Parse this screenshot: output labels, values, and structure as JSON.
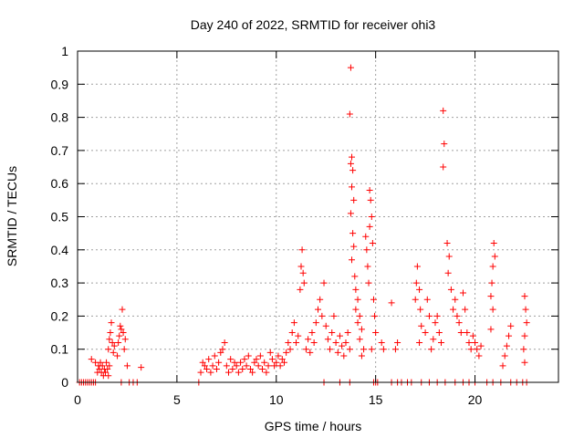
{
  "chart_data": {
    "type": "scatter",
    "title": "Day 240 of 2022, SRMTID for receiver ohi3",
    "xlabel": "GPS time / hours",
    "ylabel": "SRMTID / TECUs",
    "xlim": [
      0,
      24.2
    ],
    "ylim": [
      0,
      1
    ],
    "x_ticks": [
      0,
      5,
      10,
      15,
      20
    ],
    "x_tick_labels": [
      "0",
      "5",
      "10",
      "15",
      "20"
    ],
    "y_ticks": [
      0,
      0.1,
      0.2,
      0.3,
      0.4,
      0.5,
      0.6,
      0.7,
      0.8,
      0.9,
      1
    ],
    "y_tick_labels": [
      "0",
      "0.1",
      "0.2",
      "0.3",
      "0.4",
      "0.5",
      "0.6",
      "0.7",
      "0.8",
      "0.9",
      "1"
    ],
    "grid": true,
    "marker": "+",
    "color": "#ff0000",
    "series": [
      {
        "name": "SRMTID",
        "points": [
          [
            0.1,
            0
          ],
          [
            0.2,
            0
          ],
          [
            0.3,
            0
          ],
          [
            0.4,
            0
          ],
          [
            0.5,
            0
          ],
          [
            0.6,
            0
          ],
          [
            0.7,
            0
          ],
          [
            0.8,
            0
          ],
          [
            0.9,
            0
          ],
          [
            0.7,
            0.07
          ],
          [
            0.9,
            0.06
          ],
          [
            1.0,
            0.03
          ],
          [
            1.05,
            0.05
          ],
          [
            1.1,
            0.04
          ],
          [
            1.15,
            0.06
          ],
          [
            1.2,
            0.03
          ],
          [
            1.25,
            0.05
          ],
          [
            1.3,
            0.02
          ],
          [
            1.35,
            0.04
          ],
          [
            1.4,
            0.03
          ],
          [
            1.45,
            0.06
          ],
          [
            1.5,
            0.04
          ],
          [
            1.55,
            0.02
          ],
          [
            1.6,
            0.05
          ],
          [
            1.55,
            0.1
          ],
          [
            1.6,
            0.13
          ],
          [
            1.65,
            0.15
          ],
          [
            1.7,
            0.18
          ],
          [
            1.75,
            0.12
          ],
          [
            1.8,
            0.09
          ],
          [
            1.85,
            0.11
          ],
          [
            2.0,
            0.08
          ],
          [
            2.05,
            0.12
          ],
          [
            2.1,
            0.14
          ],
          [
            2.15,
            0.17
          ],
          [
            2.2,
            0.16
          ],
          [
            2.25,
            0.22
          ],
          [
            2.3,
            0.15
          ],
          [
            2.35,
            0.1
          ],
          [
            2.4,
            0.13
          ],
          [
            2.2,
            0
          ],
          [
            2.5,
            0.05
          ],
          [
            2.6,
            0
          ],
          [
            2.8,
            0
          ],
          [
            3.0,
            0
          ],
          [
            3.2,
            0.045
          ],
          [
            6.1,
            0
          ],
          [
            6.2,
            0.03
          ],
          [
            6.3,
            0.06
          ],
          [
            6.4,
            0.05
          ],
          [
            6.5,
            0.04
          ],
          [
            6.6,
            0.07
          ],
          [
            6.7,
            0.03
          ],
          [
            6.8,
            0.05
          ],
          [
            6.9,
            0.08
          ],
          [
            7.0,
            0.04
          ],
          [
            7.1,
            0.06
          ],
          [
            7.2,
            0.09
          ],
          [
            7.3,
            0.1
          ],
          [
            7.4,
            0.12
          ],
          [
            7.5,
            0.05
          ],
          [
            7.6,
            0.03
          ],
          [
            7.7,
            0.07
          ],
          [
            7.8,
            0.04
          ],
          [
            7.9,
            0.06
          ],
          [
            8.0,
            0.05
          ],
          [
            8.1,
            0.03
          ],
          [
            8.2,
            0.06
          ],
          [
            8.3,
            0.04
          ],
          [
            8.4,
            0.07
          ],
          [
            8.5,
            0.05
          ],
          [
            8.6,
            0.08
          ],
          [
            8.7,
            0.04
          ],
          [
            8.8,
            0.03
          ],
          [
            8.9,
            0.06
          ],
          [
            9.0,
            0.07
          ],
          [
            9.1,
            0.05
          ],
          [
            9.2,
            0.08
          ],
          [
            9.3,
            0.04
          ],
          [
            9.4,
            0.06
          ],
          [
            9.5,
            0.03
          ],
          [
            9.6,
            0.05
          ],
          [
            9.7,
            0.09
          ],
          [
            9.8,
            0.07
          ],
          [
            9.9,
            0.05
          ],
          [
            10.0,
            0.06
          ],
          [
            10.1,
            0.08
          ],
          [
            10.2,
            0.05
          ],
          [
            10.3,
            0.07
          ],
          [
            10.4,
            0.06
          ],
          [
            10.5,
            0.09
          ],
          [
            10.6,
            0.12
          ],
          [
            10.7,
            0.1
          ],
          [
            10.8,
            0.15
          ],
          [
            10.9,
            0.18
          ],
          [
            11.0,
            0.12
          ],
          [
            11.1,
            0.14
          ],
          [
            11.2,
            0.28
          ],
          [
            11.25,
            0.35
          ],
          [
            11.3,
            0.4
          ],
          [
            11.35,
            0.33
          ],
          [
            11.4,
            0.3
          ],
          [
            11.5,
            0.1
          ],
          [
            11.6,
            0.13
          ],
          [
            11.7,
            0.09
          ],
          [
            11.8,
            0.15
          ],
          [
            11.9,
            0.12
          ],
          [
            12.0,
            0.18
          ],
          [
            12.1,
            0.22
          ],
          [
            12.2,
            0.25
          ],
          [
            12.3,
            0.2
          ],
          [
            12.4,
            0.3
          ],
          [
            12.5,
            0.17
          ],
          [
            12.6,
            0.13
          ],
          [
            12.7,
            0.1
          ],
          [
            12.8,
            0.15
          ],
          [
            12.9,
            0.2
          ],
          [
            13.0,
            0.12
          ],
          [
            13.1,
            0.09
          ],
          [
            13.2,
            0.14
          ],
          [
            13.3,
            0.11
          ],
          [
            13.4,
            0.08
          ],
          [
            13.5,
            0.12
          ],
          [
            13.6,
            0.15
          ],
          [
            13.7,
            0.1
          ],
          [
            12.4,
            0
          ],
          [
            13.2,
            0
          ],
          [
            13.7,
            0
          ],
          [
            13.75,
            0.95
          ],
          [
            13.7,
            0.81
          ],
          [
            13.8,
            0.68
          ],
          [
            13.75,
            0.66
          ],
          [
            13.85,
            0.64
          ],
          [
            13.8,
            0.59
          ],
          [
            13.9,
            0.55
          ],
          [
            13.75,
            0.51
          ],
          [
            13.85,
            0.45
          ],
          [
            13.9,
            0.41
          ],
          [
            13.8,
            0.37
          ],
          [
            13.95,
            0.32
          ],
          [
            14.0,
            0.28
          ],
          [
            14.1,
            0.25
          ],
          [
            14.0,
            0.22
          ],
          [
            14.2,
            0.2
          ],
          [
            14.1,
            0.18
          ],
          [
            14.3,
            0.16
          ],
          [
            14.2,
            0.13
          ],
          [
            14.4,
            0.1
          ],
          [
            14.3,
            0.08
          ],
          [
            14.5,
            0.44
          ],
          [
            14.55,
            0.4
          ],
          [
            14.6,
            0.35
          ],
          [
            14.65,
            0.3
          ],
          [
            14.7,
            0.58
          ],
          [
            14.75,
            0.55
          ],
          [
            14.8,
            0.5
          ],
          [
            14.7,
            0.47
          ],
          [
            14.85,
            0.42
          ],
          [
            14.9,
            0.25
          ],
          [
            14.95,
            0.2
          ],
          [
            15.0,
            0.15
          ],
          [
            14.8,
            0.1
          ],
          [
            14.9,
            0
          ],
          [
            15.0,
            0
          ],
          [
            15.1,
            0
          ],
          [
            15.3,
            0.12
          ],
          [
            15.4,
            0.1
          ],
          [
            15.8,
            0.24
          ],
          [
            16.0,
            0.1
          ],
          [
            16.1,
            0.12
          ],
          [
            15.8,
            0
          ],
          [
            16.1,
            0
          ],
          [
            16.3,
            0
          ],
          [
            16.6,
            0
          ],
          [
            16.8,
            0
          ],
          [
            17.0,
            0.25
          ],
          [
            17.05,
            0.3
          ],
          [
            17.1,
            0.35
          ],
          [
            17.2,
            0.28
          ],
          [
            17.25,
            0.22
          ],
          [
            17.3,
            0.17
          ],
          [
            17.2,
            0.12
          ],
          [
            17.5,
            0.15
          ],
          [
            17.6,
            0.25
          ],
          [
            17.7,
            0.2
          ],
          [
            17.8,
            0.1
          ],
          [
            17.9,
            0.13
          ],
          [
            18.0,
            0.18
          ],
          [
            18.1,
            0.2
          ],
          [
            18.2,
            0.15
          ],
          [
            18.3,
            0.12
          ],
          [
            18.4,
            0.82
          ],
          [
            18.45,
            0.72
          ],
          [
            18.4,
            0.65
          ],
          [
            18.6,
            0.42
          ],
          [
            18.7,
            0.38
          ],
          [
            18.65,
            0.33
          ],
          [
            18.8,
            0.28
          ],
          [
            18.9,
            0.22
          ],
          [
            19.0,
            0.25
          ],
          [
            19.1,
            0.2
          ],
          [
            19.2,
            0.18
          ],
          [
            19.3,
            0.15
          ],
          [
            19.4,
            0.27
          ],
          [
            19.5,
            0.22
          ],
          [
            19.6,
            0.15
          ],
          [
            19.7,
            0.12
          ],
          [
            19.8,
            0.1
          ],
          [
            19.9,
            0.14
          ],
          [
            20.0,
            0.12
          ],
          [
            20.1,
            0.1
          ],
          [
            20.2,
            0.08
          ],
          [
            20.3,
            0.11
          ],
          [
            17.3,
            0
          ],
          [
            17.7,
            0
          ],
          [
            18.1,
            0
          ],
          [
            18.5,
            0
          ],
          [
            19.0,
            0
          ],
          [
            19.4,
            0
          ],
          [
            19.7,
            0
          ],
          [
            20.0,
            0
          ],
          [
            20.8,
            0.26
          ],
          [
            20.85,
            0.3
          ],
          [
            20.9,
            0.35
          ],
          [
            20.95,
            0.42
          ],
          [
            21.0,
            0.38
          ],
          [
            20.9,
            0.22
          ],
          [
            20.8,
            0.16
          ],
          [
            20.6,
            0
          ],
          [
            20.9,
            0
          ],
          [
            21.3,
            0
          ],
          [
            21.4,
            0.05
          ],
          [
            21.5,
            0.08
          ],
          [
            21.6,
            0.11
          ],
          [
            21.7,
            0.14
          ],
          [
            21.8,
            0.17
          ],
          [
            21.8,
            0
          ],
          [
            22.1,
            0
          ],
          [
            22.4,
            0
          ],
          [
            22.6,
            0
          ],
          [
            22.5,
            0.26
          ],
          [
            22.55,
            0.22
          ],
          [
            22.6,
            0.18
          ],
          [
            22.5,
            0.14
          ],
          [
            22.45,
            0.1
          ],
          [
            22.5,
            0.06
          ]
        ]
      }
    ]
  }
}
